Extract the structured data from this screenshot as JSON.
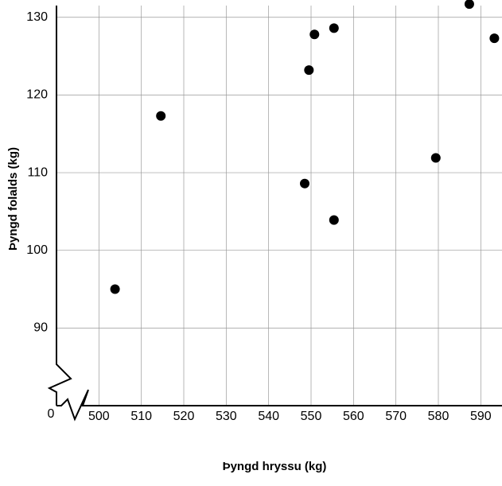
{
  "chart_data": {
    "type": "scatter",
    "x_label": "Þyngd hryssu (kg)",
    "y_label": "Þyngd folalds (kg)",
    "origin_label": "0",
    "x": [
      503.8,
      514.6,
      548.5,
      549.5,
      550.8,
      555.4,
      555.4,
      579.4,
      587.3,
      593.2
    ],
    "y": [
      95.0,
      117.3,
      108.6,
      123.2,
      127.8,
      128.6,
      103.9,
      111.9,
      131.7,
      127.3
    ],
    "color": "#000000",
    "xlim": [
      490,
      595
    ],
    "xticks": [
      500,
      510,
      520,
      530,
      540,
      550,
      560,
      570,
      580,
      590
    ],
    "ylim": [
      80,
      132
    ],
    "yticks": [
      90,
      100,
      110,
      120,
      130
    ],
    "grid": true
  }
}
